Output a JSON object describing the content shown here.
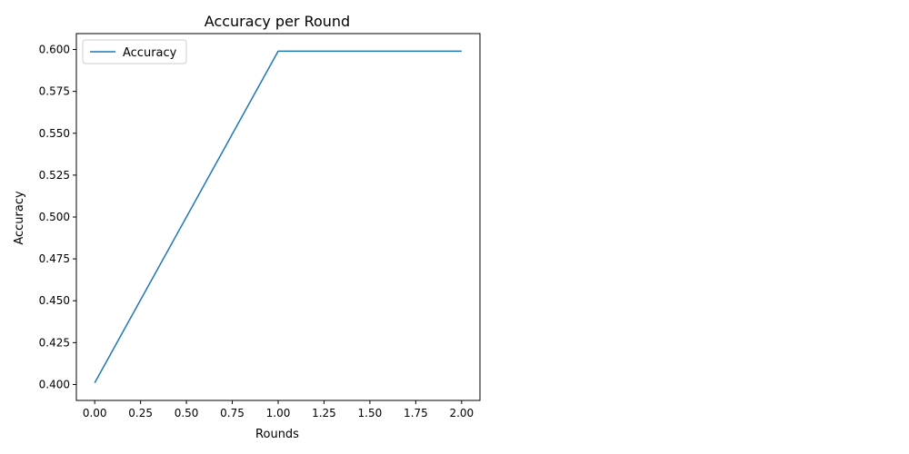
{
  "chart_data": {
    "type": "line",
    "title": "Accuracy per Round",
    "xlabel": "Rounds",
    "ylabel": "Accuracy",
    "xlim": [
      -0.1,
      2.1
    ],
    "ylim": [
      0.3905,
      0.6095
    ],
    "xticks": [
      0.0,
      0.25,
      0.5,
      0.75,
      1.0,
      1.25,
      1.5,
      1.75,
      2.0
    ],
    "xtick_labels": [
      "0.00",
      "0.25",
      "0.50",
      "0.75",
      "1.00",
      "1.25",
      "1.50",
      "1.75",
      "2.00"
    ],
    "yticks": [
      0.4,
      0.425,
      0.45,
      0.475,
      0.5,
      0.525,
      0.55,
      0.575,
      0.6
    ],
    "ytick_labels": [
      "0.400",
      "0.425",
      "0.450",
      "0.475",
      "0.500",
      "0.525",
      "0.550",
      "0.575",
      "0.600"
    ],
    "grid": false,
    "legend_position": "top-left",
    "series": [
      {
        "name": "Accuracy",
        "color": "#1f77b4",
        "x": [
          0,
          1,
          2
        ],
        "values": [
          0.401,
          0.599,
          0.599
        ]
      }
    ]
  }
}
